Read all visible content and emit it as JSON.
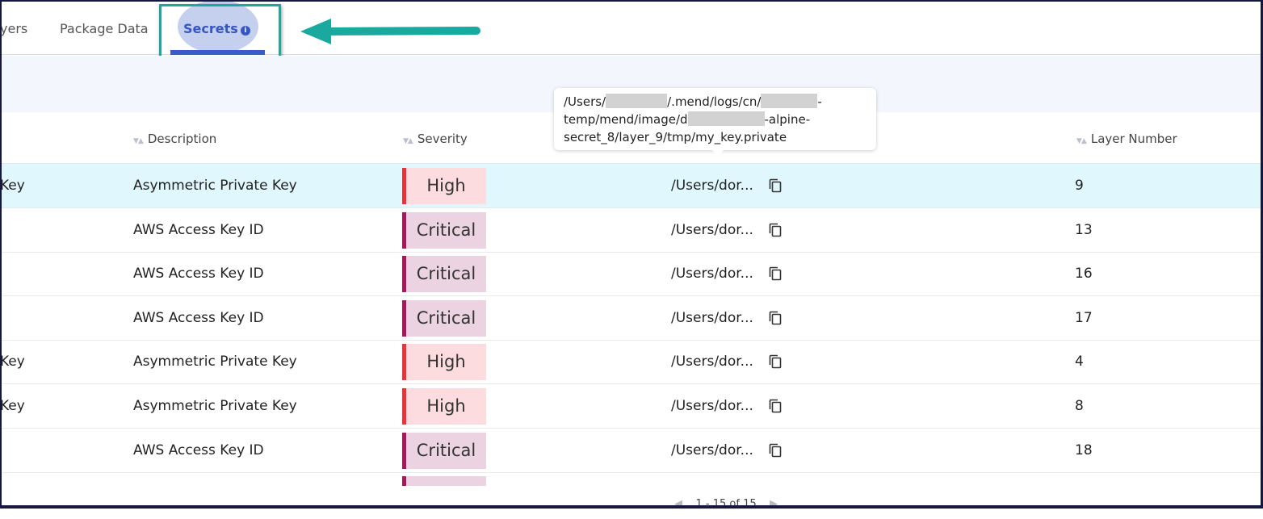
{
  "tabs": [
    {
      "label": "yers"
    },
    {
      "label": "Package Data"
    },
    {
      "label": "Secrets",
      "active": true
    }
  ],
  "columns": {
    "description": "Description",
    "severity": "Severity",
    "layer": "Layer Number"
  },
  "tooltip": {
    "p1": "/Users/",
    "p2": "/.mend/logs/cn/",
    "p3": "-",
    "p4": "temp/mend/image/d",
    "p5": "-alpine-",
    "p6": "secret_8/layer_9/tmp/my_key.private"
  },
  "rows": [
    {
      "type": "Key",
      "description": "Asymmetric Private Key",
      "severity": "High",
      "path": "/Users/dor...",
      "layer": "9",
      "selected": true
    },
    {
      "type": "",
      "description": "AWS Access Key ID",
      "severity": "Critical",
      "path": "/Users/dor...",
      "layer": "13"
    },
    {
      "type": "",
      "description": "AWS Access Key ID",
      "severity": "Critical",
      "path": "/Users/dor...",
      "layer": "16"
    },
    {
      "type": "",
      "description": "AWS Access Key ID",
      "severity": "Critical",
      "path": "/Users/dor...",
      "layer": "17"
    },
    {
      "type": "Key",
      "description": "Asymmetric Private Key",
      "severity": "High",
      "path": "/Users/dor...",
      "layer": "4"
    },
    {
      "type": "Key",
      "description": "Asymmetric Private Key",
      "severity": "High",
      "path": "/Users/dor...",
      "layer": "8"
    },
    {
      "type": "",
      "description": "AWS Access Key ID",
      "severity": "Critical",
      "path": "/Users/dor...",
      "layer": "18"
    }
  ],
  "pagination": {
    "label": "1 - 15 of 15"
  },
  "colors": {
    "accent": "#3656c4",
    "highlight": "#19a99f",
    "high": "#e7343b",
    "critical": "#a3195b"
  }
}
